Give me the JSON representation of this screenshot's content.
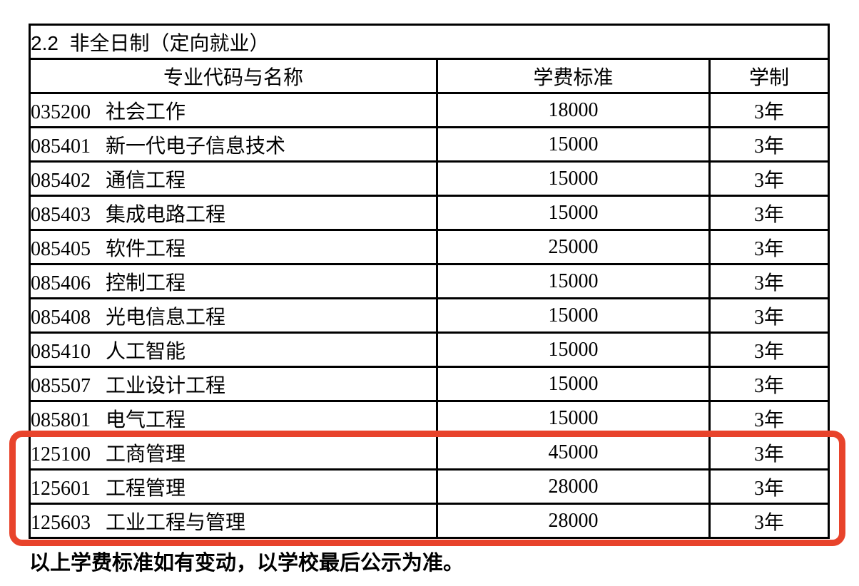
{
  "page": {
    "section_title": "2.2  非全日制（定向就业）",
    "footer_note": "以上学费标准如有变动，以学校最后公示为准。"
  },
  "table": {
    "columns": {
      "code_name": "专业代码与名称",
      "fee": "学费标准",
      "years": "学制"
    },
    "rows": [
      {
        "code": "035200",
        "name": "社会工作",
        "fee": "18000",
        "years": "3年",
        "highlighted": false
      },
      {
        "code": "085401",
        "name": "新一代电子信息技术",
        "fee": "15000",
        "years": "3年",
        "highlighted": false
      },
      {
        "code": "085402",
        "name": "通信工程",
        "fee": "15000",
        "years": "3年",
        "highlighted": false
      },
      {
        "code": "085403",
        "name": "集成电路工程",
        "fee": "15000",
        "years": "3年",
        "highlighted": false
      },
      {
        "code": "085405",
        "name": "软件工程",
        "fee": "25000",
        "years": "3年",
        "highlighted": false
      },
      {
        "code": "085406",
        "name": "控制工程",
        "fee": "15000",
        "years": "3年",
        "highlighted": false
      },
      {
        "code": "085408",
        "name": "光电信息工程",
        "fee": "15000",
        "years": "3年",
        "highlighted": false
      },
      {
        "code": "085410",
        "name": "人工智能",
        "fee": "15000",
        "years": "3年",
        "highlighted": false
      },
      {
        "code": "085507",
        "name": "工业设计工程",
        "fee": "15000",
        "years": "3年",
        "highlighted": false
      },
      {
        "code": "085801",
        "name": "电气工程",
        "fee": "15000",
        "years": "3年",
        "highlighted": false
      },
      {
        "code": "125100",
        "name": "工商管理",
        "fee": "45000",
        "years": "3年",
        "highlighted": true
      },
      {
        "code": "125601",
        "name": "工程管理",
        "fee": "28000",
        "years": "3年",
        "highlighted": true
      },
      {
        "code": "125603",
        "name": "工业工程与管理",
        "fee": "28000",
        "years": "3年",
        "highlighted": true
      }
    ]
  },
  "annotation": {
    "highlight_color": "#e8432b",
    "highlighted_codes": [
      "125100",
      "125601",
      "125603"
    ]
  }
}
